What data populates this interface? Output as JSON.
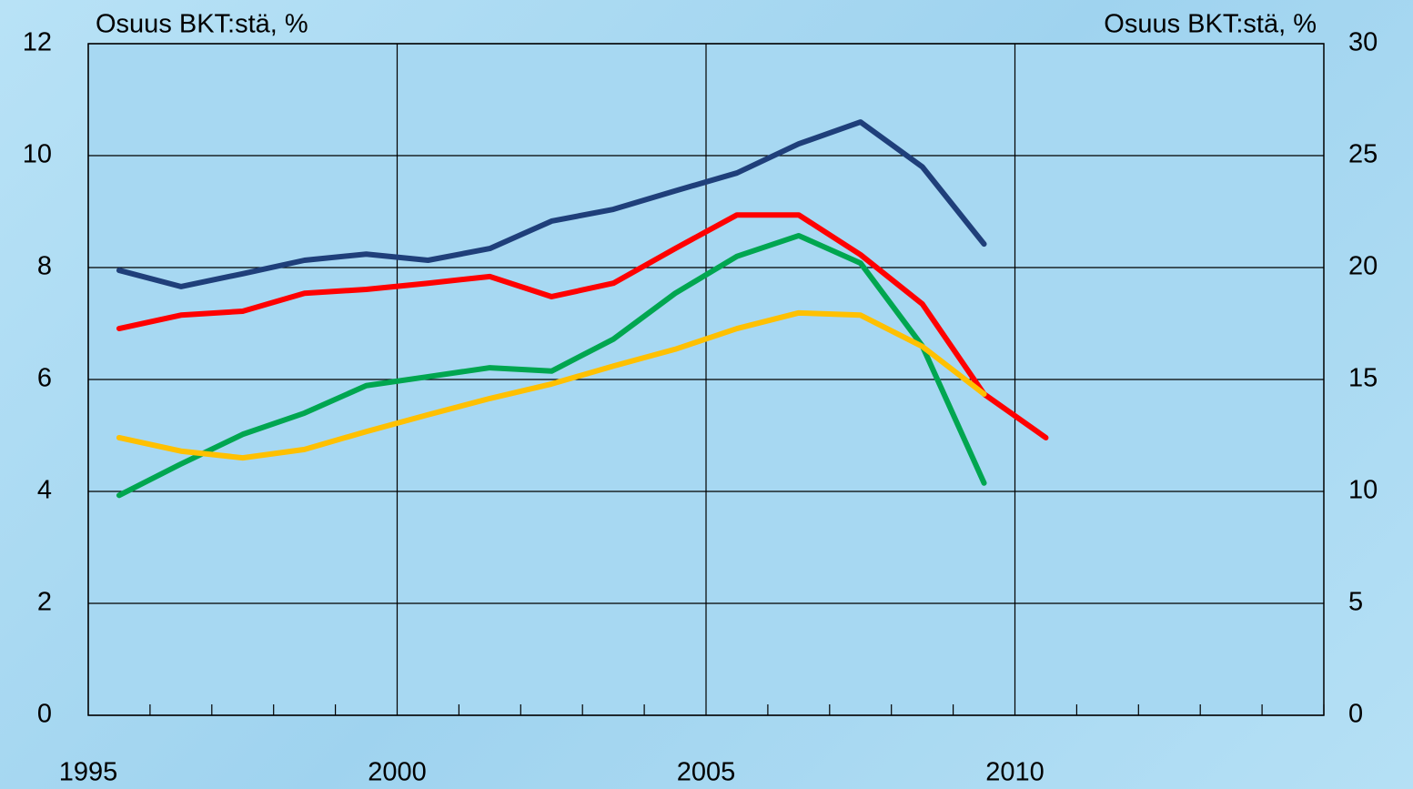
{
  "chart_data": {
    "type": "line",
    "ylabel": "Osuus BKT:stä, %",
    "y2label": "Osuus BKT:stä, %",
    "x": [
      1995.5,
      1996.5,
      1997.5,
      1998.5,
      1999.5,
      2000.5,
      2001.5,
      2002.5,
      2003.5,
      2004.5,
      2005.5,
      2006.5,
      2007.5,
      2008.5,
      2009.5,
      2010.5
    ],
    "series": [
      {
        "color": "#1f3f7a",
        "values": [
          7.95,
          7.66,
          7.89,
          8.13,
          8.24,
          8.13,
          8.34,
          8.83,
          9.04,
          9.37,
          9.69,
          10.21,
          10.6,
          9.8,
          8.42,
          null
        ]
      },
      {
        "color": "#ff0000",
        "values": [
          6.91,
          7.15,
          7.22,
          7.54,
          7.61,
          7.72,
          7.84,
          7.48,
          7.72,
          8.34,
          8.94,
          8.94,
          8.23,
          7.35,
          5.74,
          4.96
        ]
      },
      {
        "color": "#00a650",
        "values": [
          3.93,
          4.49,
          5.02,
          5.4,
          5.89,
          6.05,
          6.21,
          6.15,
          6.72,
          7.54,
          8.2,
          8.57,
          8.08,
          6.6,
          4.15,
          null
        ]
      },
      {
        "color": "#ffc000",
        "values": [
          4.96,
          4.72,
          4.6,
          4.75,
          5.07,
          5.37,
          5.66,
          5.92,
          6.24,
          6.54,
          6.91,
          7.19,
          7.15,
          6.59,
          5.74,
          null
        ]
      }
    ],
    "xlim": [
      1995,
      2015
    ],
    "xticks": [
      1995,
      2000,
      2005,
      2010
    ],
    "xminorticks": [
      1996,
      1997,
      1998,
      1999,
      2001,
      2002,
      2003,
      2004,
      2006,
      2007,
      2008,
      2009,
      2011,
      2012,
      2013,
      2014,
      2015
    ],
    "ylim": [
      0,
      12
    ],
    "yticks": [
      0,
      2,
      4,
      6,
      8,
      10,
      12
    ],
    "y2lim": [
      0,
      30
    ],
    "y2ticks": [
      0,
      5,
      10,
      15,
      20,
      25,
      30
    ],
    "grid": true
  }
}
